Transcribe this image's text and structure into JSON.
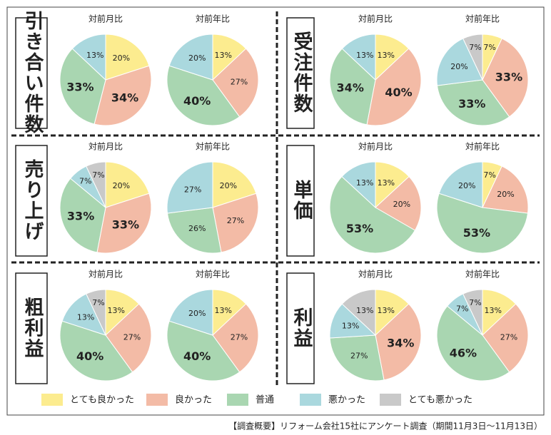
{
  "panel_labels": [
    "引き合い件数",
    "受注件数",
    "売り上げ",
    "単価",
    "粗利益",
    "利益"
  ],
  "legend": {
    "categories": [
      "とても良かった",
      "良かった",
      "普通",
      "悪かった",
      "とても悪かった"
    ],
    "colors": [
      "#fcec8f",
      "#f3bba6",
      "#a9d6b1",
      "#aad8de",
      "#c9c9c9"
    ]
  },
  "chart_data": [
    {
      "type": "pie",
      "title": "対前月比",
      "categories": [
        "とても良かった",
        "良かった",
        "普通",
        "悪かった"
      ],
      "values": [
        20,
        34,
        33,
        13
      ]
    },
    {
      "type": "pie",
      "title": "対前年比",
      "categories": [
        "とても良かった",
        "良かった",
        "普通",
        "悪かった"
      ],
      "values": [
        13,
        27,
        40,
        20
      ]
    },
    {
      "type": "pie",
      "title": "対前月比",
      "categories": [
        "とても良かった",
        "良かった",
        "普通",
        "悪かった"
      ],
      "values": [
        13,
        40,
        34,
        13
      ]
    },
    {
      "type": "pie",
      "title": "対前年比",
      "categories": [
        "とても良かった",
        "良かった",
        "普通",
        "悪かった",
        "とても悪かった"
      ],
      "values": [
        7,
        33,
        33,
        20,
        7
      ]
    },
    {
      "type": "pie",
      "title": "対前月比",
      "categories": [
        "とても良かった",
        "良かった",
        "普通",
        "悪かった",
        "とても悪かった"
      ],
      "values": [
        20,
        33,
        33,
        7,
        7
      ]
    },
    {
      "type": "pie",
      "title": "対前年比",
      "categories": [
        "とても良かった",
        "良かった",
        "普通",
        "悪かった"
      ],
      "values": [
        20,
        27,
        26,
        27
      ]
    },
    {
      "type": "pie",
      "title": "対前月比",
      "categories": [
        "とても良かった",
        "良かった",
        "普通",
        "悪かった"
      ],
      "values": [
        13,
        20,
        53,
        13
      ]
    },
    {
      "type": "pie",
      "title": "対前年比",
      "categories": [
        "とても良かった",
        "良かった",
        "普通",
        "悪かった"
      ],
      "values": [
        7,
        20,
        53,
        20
      ]
    },
    {
      "type": "pie",
      "title": "対前月比",
      "categories": [
        "とても良かった",
        "良かった",
        "普通",
        "悪かった",
        "とても悪かった"
      ],
      "values": [
        13,
        27,
        40,
        13,
        7
      ]
    },
    {
      "type": "pie",
      "title": "対前年比",
      "categories": [
        "とても良かった",
        "良かった",
        "普通",
        "悪かった"
      ],
      "values": [
        13,
        27,
        40,
        20
      ]
    },
    {
      "type": "pie",
      "title": "対前月比",
      "categories": [
        "とても良かった",
        "良かった",
        "普通",
        "悪かった",
        "とても悪かった"
      ],
      "values": [
        13,
        34,
        27,
        13,
        13
      ]
    },
    {
      "type": "pie",
      "title": "対前年比",
      "categories": [
        "とても良かった",
        "良かった",
        "普通",
        "悪かった",
        "とても悪かった"
      ],
      "values": [
        13,
        27,
        46,
        7,
        7
      ]
    }
  ],
  "percent_sign": "%",
  "footnote": "【調査概要】リフォーム会社15社にアンケート調査（期間11月3日〜11月13日）"
}
